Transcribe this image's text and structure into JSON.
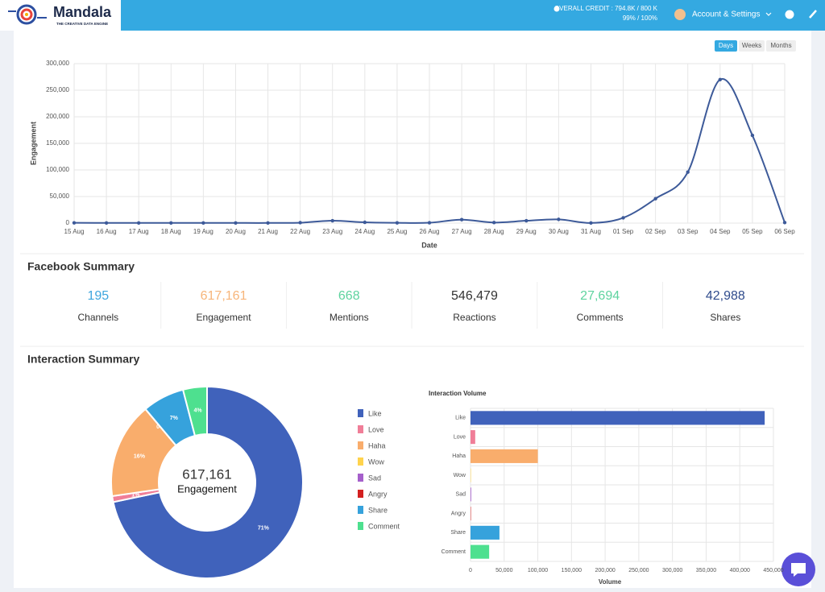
{
  "header": {
    "brand": "Mandala",
    "tagline": "THE CREATIVE DATA ENGINE",
    "credit": "OVERALL CREDIT : 794.8K / 800 K",
    "credit_pct": "99% / 100%",
    "account": "Account & Settings"
  },
  "range_buttons": [
    "Days",
    "Weeks",
    "Months"
  ],
  "facebook_summary": {
    "title": "Facebook Summary",
    "items": [
      {
        "value": "195",
        "label": "Channels",
        "color": "#3ea6de"
      },
      {
        "value": "617,161",
        "label": "Engagement",
        "color": "#f7b57a"
      },
      {
        "value": "668",
        "label": "Mentions",
        "color": "#5ed39f"
      },
      {
        "value": "546,479",
        "label": "Reactions",
        "color": "#333333"
      },
      {
        "value": "27,694",
        "label": "Comments",
        "color": "#5ed39f"
      },
      {
        "value": "42,988",
        "label": "Shares",
        "color": "#2f4b8c"
      }
    ]
  },
  "interaction_summary": {
    "title": "Interaction Summary"
  },
  "chart_data": [
    {
      "type": "line",
      "xlabel": "Date",
      "ylabel": "Engagement",
      "color": "#3d5a99",
      "grid": true,
      "categories": [
        "15 Aug",
        "16 Aug",
        "17 Aug",
        "18 Aug",
        "19 Aug",
        "20 Aug",
        "21 Aug",
        "22 Aug",
        "23 Aug",
        "24 Aug",
        "25 Aug",
        "26 Aug",
        "27 Aug",
        "28 Aug",
        "29 Aug",
        "30 Aug",
        "31 Aug",
        "01 Sep",
        "02 Sep",
        "03 Sep",
        "04 Sep",
        "05 Sep",
        "06 Sep"
      ],
      "values": [
        500,
        300,
        300,
        300,
        300,
        300,
        300,
        800,
        4500,
        1500,
        500,
        700,
        6500,
        1000,
        4500,
        7000,
        300,
        10000,
        46000,
        96000,
        270000,
        165000,
        1000
      ],
      "ylim": [
        0,
        300000
      ],
      "yticks": [
        0,
        {
          "value": 50000,
          "label": "50,000"
        },
        {
          "value": 100000,
          "label": "100,000"
        },
        {
          "value": 150000,
          "label": "150,000"
        },
        {
          "value": 200000,
          "label": "200,000"
        },
        {
          "value": 250000,
          "label": "250,000"
        },
        {
          "value": 300000,
          "label": "300,000"
        }
      ]
    },
    {
      "type": "pie",
      "center_value": "617,161",
      "center_label": "Engagement",
      "categories": [
        "Like",
        "Love",
        "Haha",
        "Wow",
        "Sad",
        "Angry",
        "Share",
        "Comment"
      ],
      "values": [
        71,
        1,
        16,
        0,
        0,
        0,
        7,
        4
      ],
      "value_labels": [
        "71%",
        "1%",
        "16%",
        "0%",
        null,
        null,
        "7%",
        "4%"
      ],
      "colors": [
        "#4062bb",
        "#f07e98",
        "#f9ad6c",
        "#ffd34d",
        "#a55fcb",
        "#d32020",
        "#36a2dc",
        "#4ee08f"
      ]
    },
    {
      "type": "barh",
      "title": "Interaction Volume",
      "xlabel": "Volume",
      "grid": true,
      "categories": [
        "Like",
        "Love",
        "Haha",
        "Wow",
        "Sad",
        "Angry",
        "Share",
        "Comment"
      ],
      "values": [
        437000,
        7000,
        100000,
        500,
        1000,
        500,
        42988,
        27694
      ],
      "colors": [
        "#4062bb",
        "#f07e98",
        "#f9ad6c",
        "#ffd34d",
        "#a55fcb",
        "#d32020",
        "#36a2dc",
        "#4ee08f"
      ],
      "xlim": [
        0,
        450000
      ],
      "xticks": [
        0,
        {
          "value": 50000,
          "label": "50,000"
        },
        {
          "value": 100000,
          "label": "100,000"
        },
        {
          "value": 150000,
          "label": "150,000"
        },
        {
          "value": 200000,
          "label": "200,000"
        },
        {
          "value": 250000,
          "label": "250,000"
        },
        {
          "value": 300000,
          "label": "300,000"
        },
        {
          "value": 350000,
          "label": "350,000"
        },
        {
          "value": 400000,
          "label": "400,000"
        },
        {
          "value": 450000,
          "label": "450,000"
        }
      ]
    }
  ]
}
